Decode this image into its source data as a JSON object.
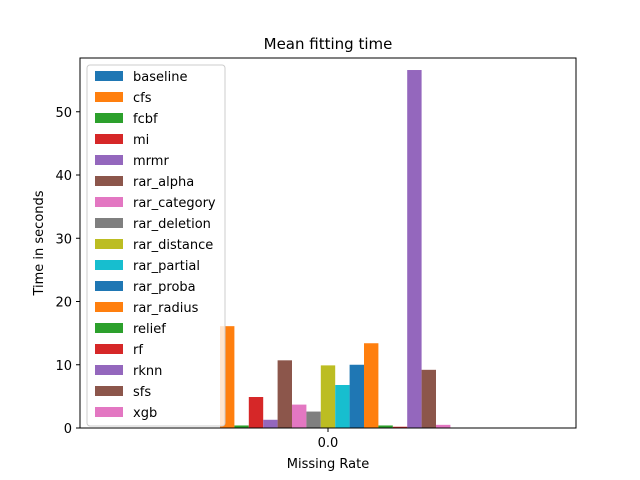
{
  "chart_data": {
    "type": "bar",
    "title": "Mean fitting time",
    "xlabel": "Missing Rate",
    "ylabel": "Time in seconds",
    "categories": [
      "0.0"
    ],
    "ylim": [
      0,
      58.5
    ],
    "yticks": [
      0,
      10,
      20,
      30,
      40,
      50
    ],
    "legend_position": "top-left",
    "series": [
      {
        "name": "baseline",
        "values": [
          0.05
        ],
        "color": "#1f77b4"
      },
      {
        "name": "cfs",
        "values": [
          16.1
        ],
        "color": "#ff7f0e"
      },
      {
        "name": "fcbf",
        "values": [
          0.4
        ],
        "color": "#2ca02c"
      },
      {
        "name": "mi",
        "values": [
          4.9
        ],
        "color": "#d62728"
      },
      {
        "name": "mrmr",
        "values": [
          1.3
        ],
        "color": "#9467bd"
      },
      {
        "name": "rar_alpha",
        "values": [
          10.7
        ],
        "color": "#8c564b"
      },
      {
        "name": "rar_category",
        "values": [
          3.7
        ],
        "color": "#e377c2"
      },
      {
        "name": "rar_deletion",
        "values": [
          2.6
        ],
        "color": "#7f7f7f"
      },
      {
        "name": "rar_distance",
        "values": [
          9.9
        ],
        "color": "#bcbd22"
      },
      {
        "name": "rar_partial",
        "values": [
          6.8
        ],
        "color": "#17becf"
      },
      {
        "name": "rar_proba",
        "values": [
          10.0
        ],
        "color": "#1f77b4"
      },
      {
        "name": "rar_radius",
        "values": [
          13.4
        ],
        "color": "#ff7f0e"
      },
      {
        "name": "relief",
        "values": [
          0.4
        ],
        "color": "#2ca02c"
      },
      {
        "name": "rf",
        "values": [
          0.2
        ],
        "color": "#d62728"
      },
      {
        "name": "rknn",
        "values": [
          56.6
        ],
        "color": "#9467bd"
      },
      {
        "name": "sfs",
        "values": [
          9.2
        ],
        "color": "#8c564b"
      },
      {
        "name": "xgb",
        "values": [
          0.5
        ],
        "color": "#e377c2"
      }
    ]
  }
}
